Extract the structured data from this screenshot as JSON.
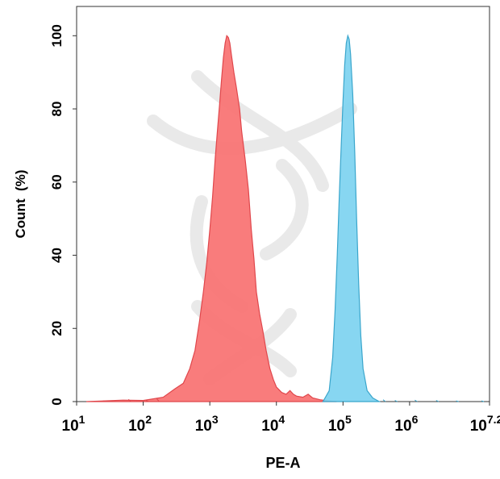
{
  "chart_data": {
    "type": "area",
    "title": "",
    "xlabel": "PE-A",
    "ylabel": "Count  (%)",
    "xscale": "log",
    "xlim": [
      10,
      15848932
    ],
    "ylim": [
      0,
      108
    ],
    "grid": false,
    "legend": "none",
    "x_ticks": [
      {
        "value": 10,
        "base": "10",
        "exp": "1"
      },
      {
        "value": 100,
        "base": "10",
        "exp": "2"
      },
      {
        "value": 1000,
        "base": "10",
        "exp": "3"
      },
      {
        "value": 10000,
        "base": "10",
        "exp": "4"
      },
      {
        "value": 100000,
        "base": "10",
        "exp": "5"
      },
      {
        "value": 1000000,
        "base": "10",
        "exp": "6"
      },
      {
        "value": 15848932,
        "base": "10",
        "exp": "7.2"
      }
    ],
    "y_ticks": [
      "0",
      "20",
      "40",
      "60",
      "80",
      "100"
    ],
    "series": [
      {
        "color": "#f87171",
        "stroke": "#e0474c",
        "points": [
          [
            14,
            0
          ],
          [
            50,
            0.4
          ],
          [
            100,
            0.3
          ],
          [
            200,
            1.2
          ],
          [
            300,
            3.5
          ],
          [
            400,
            5
          ],
          [
            500,
            9
          ],
          [
            600,
            14
          ],
          [
            700,
            22
          ],
          [
            800,
            30
          ],
          [
            900,
            38
          ],
          [
            1000,
            47
          ],
          [
            1100,
            56
          ],
          [
            1200,
            66
          ],
          [
            1300,
            74
          ],
          [
            1400,
            81
          ],
          [
            1500,
            88
          ],
          [
            1600,
            94
          ],
          [
            1700,
            98
          ],
          [
            1800,
            100
          ],
          [
            1900,
            99.5
          ],
          [
            2000,
            98
          ],
          [
            2100,
            95
          ],
          [
            2300,
            90
          ],
          [
            2500,
            86
          ],
          [
            2800,
            80
          ],
          [
            3000,
            74
          ],
          [
            3400,
            66
          ],
          [
            3800,
            58
          ],
          [
            4200,
            47
          ],
          [
            4600,
            39
          ],
          [
            5000,
            30
          ],
          [
            5600,
            24
          ],
          [
            6300,
            19
          ],
          [
            7000,
            14
          ],
          [
            8000,
            9
          ],
          [
            9000,
            6
          ],
          [
            10000,
            4
          ],
          [
            12000,
            2.5
          ],
          [
            14000,
            2
          ],
          [
            16000,
            3
          ],
          [
            18000,
            2
          ],
          [
            20000,
            1.5
          ],
          [
            25000,
            1.2
          ],
          [
            30000,
            2
          ],
          [
            35000,
            1
          ],
          [
            45000,
            0.5
          ],
          [
            60000,
            0.2
          ],
          [
            80000,
            0
          ]
        ]
      },
      {
        "color": "#7dd3f0",
        "stroke": "#3aa6cc",
        "points": [
          [
            50000,
            0
          ],
          [
            62000,
            3
          ],
          [
            70000,
            12
          ],
          [
            76000,
            25
          ],
          [
            82000,
            40
          ],
          [
            88000,
            56
          ],
          [
            94000,
            70
          ],
          [
            100000,
            82
          ],
          [
            106000,
            92
          ],
          [
            112000,
            98
          ],
          [
            118000,
            100
          ],
          [
            124000,
            99
          ],
          [
            130000,
            95
          ],
          [
            140000,
            84
          ],
          [
            150000,
            68
          ],
          [
            160000,
            50
          ],
          [
            172000,
            32
          ],
          [
            185000,
            18
          ],
          [
            200000,
            9
          ],
          [
            230000,
            3
          ],
          [
            280000,
            1
          ],
          [
            350000,
            0
          ]
        ]
      }
    ],
    "baseline_noise": [
      [
        25,
        0.2
      ],
      [
        60,
        0.6
      ],
      [
        110,
        0.3
      ],
      [
        160,
        0.8
      ],
      [
        400000,
        0.5
      ],
      [
        600000,
        0.3
      ],
      [
        1200000,
        0.4
      ],
      [
        2500000,
        0.3
      ],
      [
        5000000,
        0.2
      ],
      [
        12000000,
        0.2
      ]
    ],
    "watermark": "dna-helix-logo"
  }
}
